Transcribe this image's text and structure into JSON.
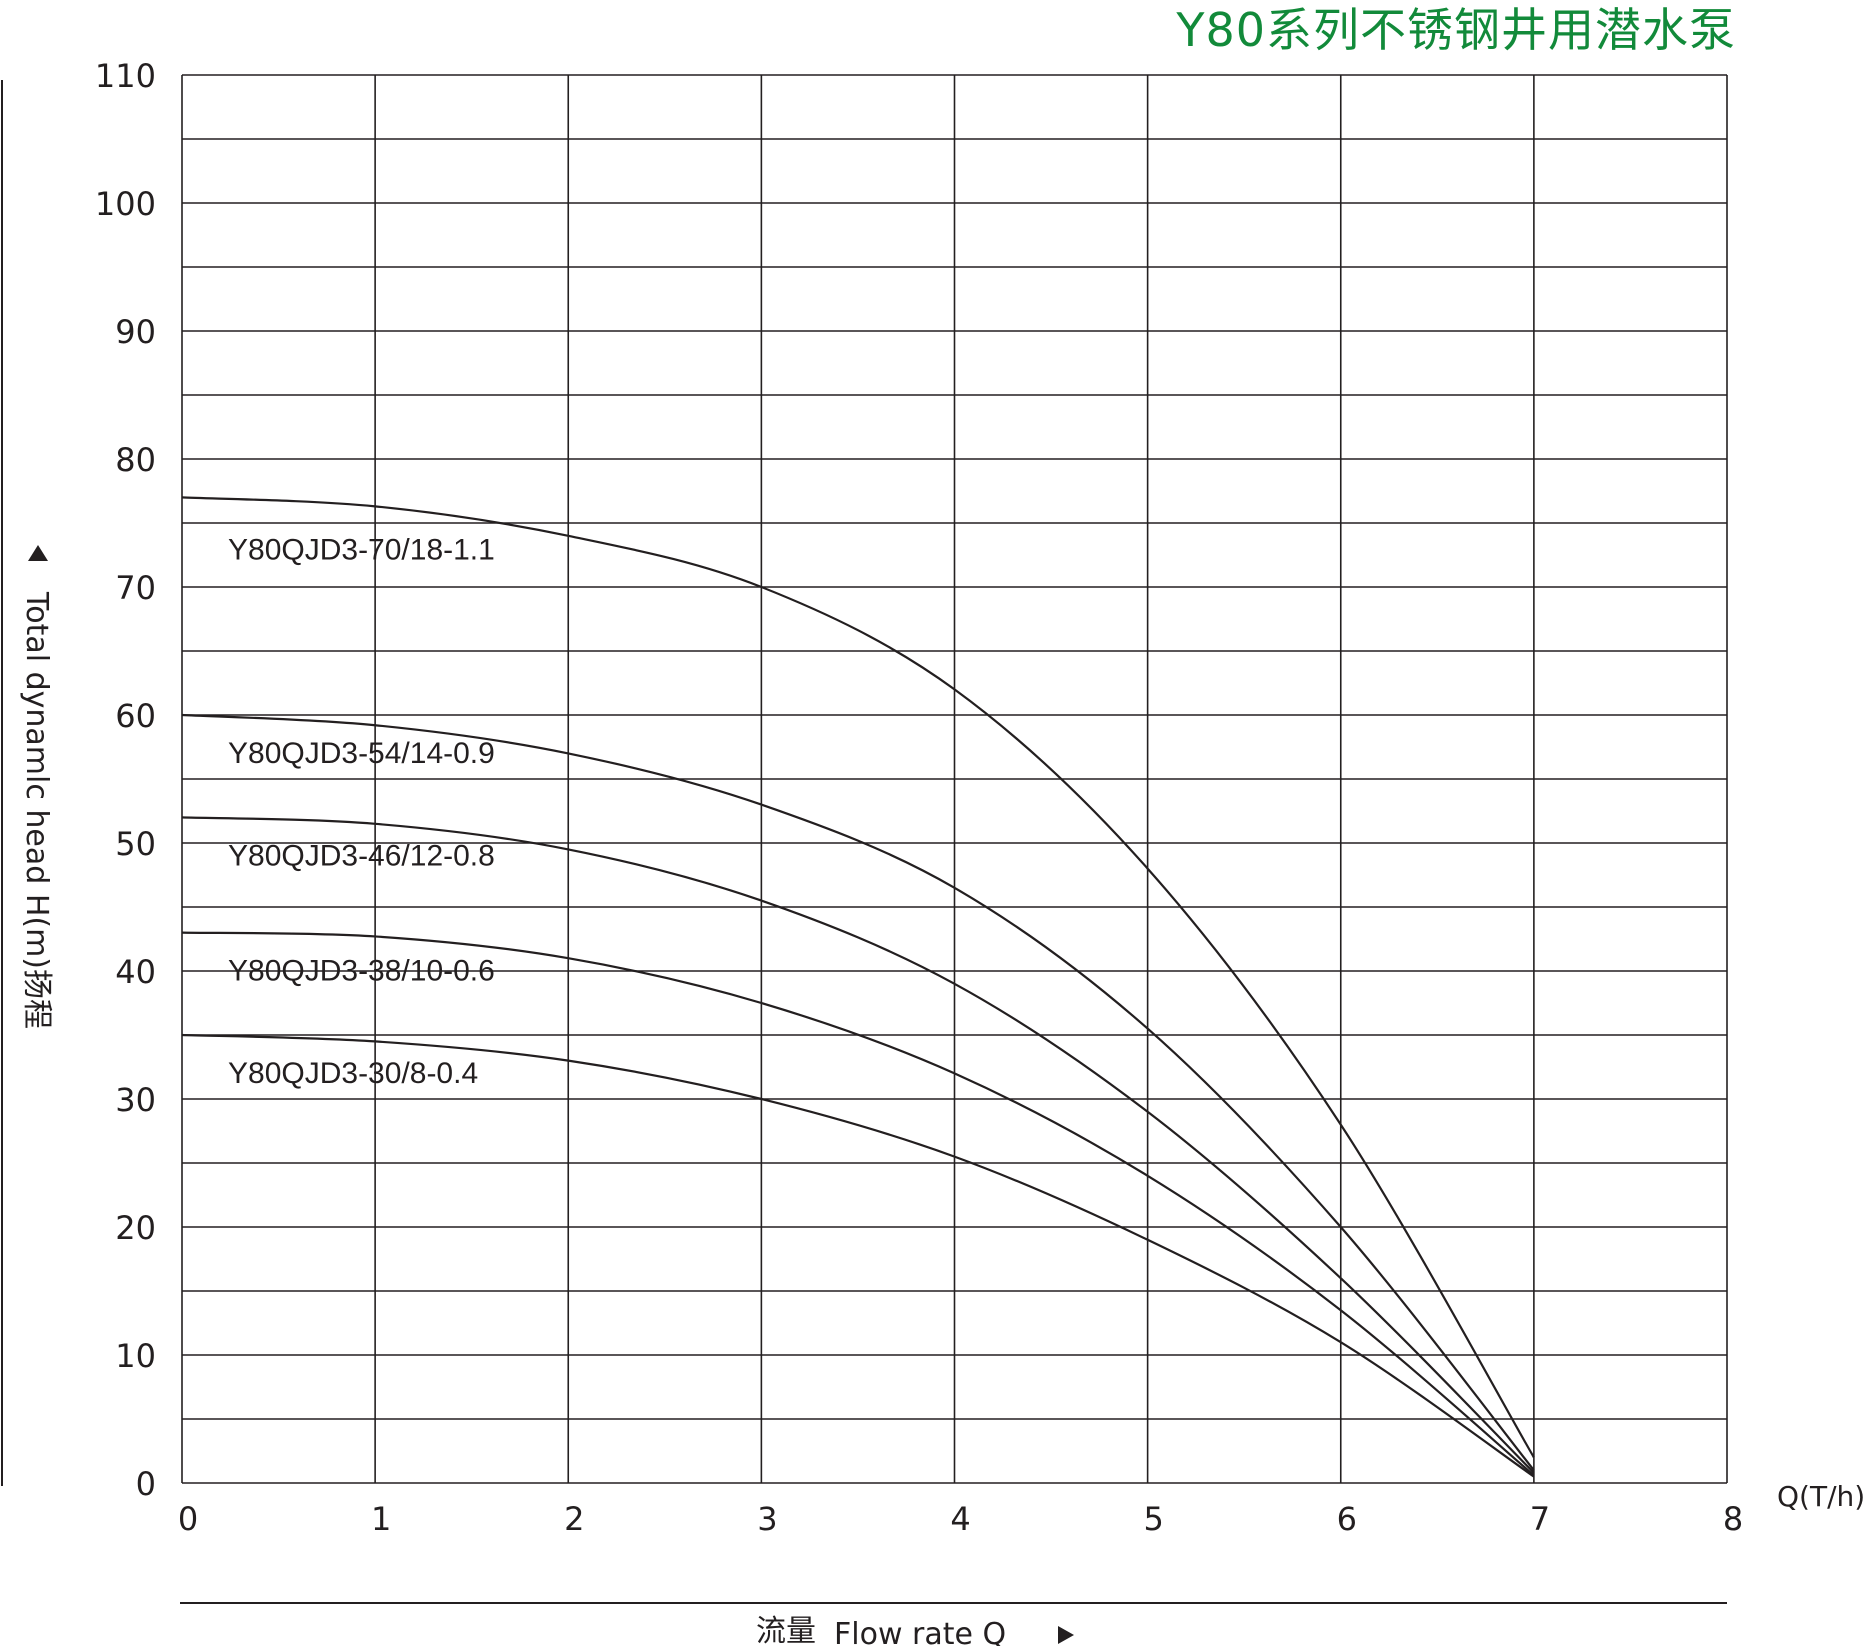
{
  "title": "Y80系列不锈钢井用潜水泵",
  "chart_data": {
    "type": "line",
    "xlabel_cn": "流量",
    "xlabel": "Flow rate Q",
    "x_unit": "Q(T/h)",
    "ylabel": "Total dynamlc head H(m)扬程",
    "xlim": [
      0,
      8
    ],
    "ylim": [
      0,
      110
    ],
    "x_ticks": [
      "0",
      "1",
      "2",
      "3",
      "4",
      "5",
      "6",
      "7",
      "8"
    ],
    "y_ticks": [
      "0",
      "10",
      "20",
      "30",
      "40",
      "50",
      "60",
      "70",
      "80",
      "90",
      "100",
      "110"
    ],
    "grid": true,
    "series": [
      {
        "name": "Y80QJD3-70/18-1.1",
        "x": [
          0,
          1,
          2,
          3,
          4,
          5,
          6,
          7
        ],
        "y": [
          77,
          76.3,
          74,
          70,
          62,
          48,
          28,
          2
        ]
      },
      {
        "name": "Y80QJD3-54/14-0.9",
        "x": [
          0,
          1,
          2,
          3,
          4,
          5,
          6,
          7
        ],
        "y": [
          60,
          59.2,
          57,
          53,
          46.5,
          35.5,
          20,
          1
        ]
      },
      {
        "name": "Y80QJD3-46/12-0.8",
        "x": [
          0,
          1,
          2,
          3,
          4,
          5,
          6,
          7
        ],
        "y": [
          52,
          51.5,
          49.5,
          45.5,
          39,
          29,
          16,
          0.8
        ]
      },
      {
        "name": "Y80QJD3-38/10-0.6",
        "x": [
          0,
          1,
          2,
          3,
          4,
          5,
          6,
          7
        ],
        "y": [
          43,
          42.7,
          41,
          37.5,
          32,
          24,
          13.5,
          0.6
        ]
      },
      {
        "name": "Y80QJD3-30/8-0.4",
        "x": [
          0,
          1,
          2,
          3,
          4,
          5,
          6,
          7
        ],
        "y": [
          35,
          34.5,
          33,
          30,
          25.5,
          19,
          11,
          0.5
        ]
      }
    ]
  }
}
